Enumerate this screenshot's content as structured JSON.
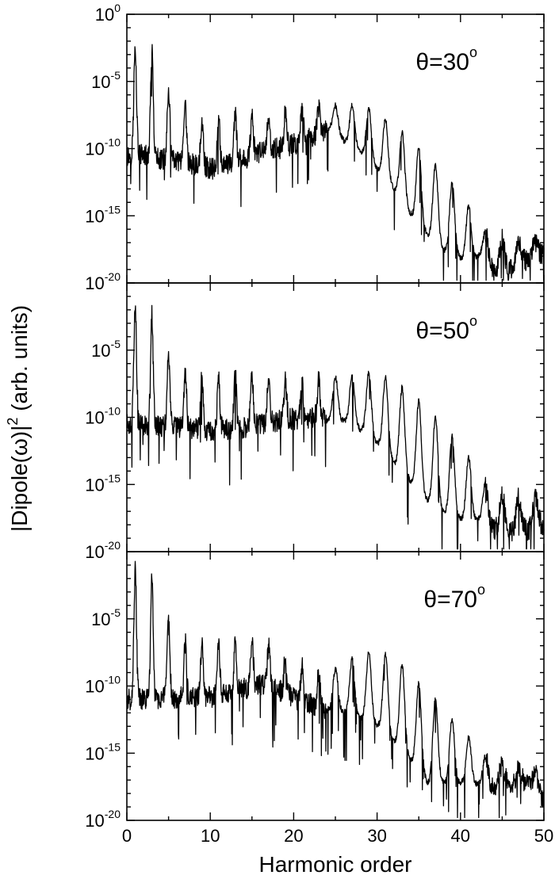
{
  "chart_data": {
    "type": "line",
    "layout": "three stacked panels sharing x-axis",
    "xlabel": "Harmonic order",
    "ylabel": "|Dipole(ω)|² (arb. units)",
    "ylabel_parts": {
      "pre": "|Dipole(ω)|",
      "sup": "2",
      "post": " (arb. units)"
    },
    "xlim": [
      0,
      50
    ],
    "ylim_log10": [
      -20,
      0
    ],
    "yscale": "log",
    "x_ticks": [
      0,
      10,
      20,
      30,
      40,
      50
    ],
    "y_ticks_exponent": [
      0,
      -5,
      -10,
      -15,
      -20
    ],
    "y_tick_base": "10",
    "grid": false,
    "line_color": "#000000",
    "panels": [
      {
        "label": "θ=30°",
        "label_parts": {
          "text": "θ=30",
          "sup": "o"
        },
        "y_tick_exponents_shown": [
          0,
          -5,
          -10,
          -15,
          -20
        ],
        "background_log10": -9.2,
        "noise_amp": 0.9,
        "harmonic_peaks": [
          [
            1,
            -2.2
          ],
          [
            3,
            -2.8
          ],
          [
            5,
            -5.5
          ],
          [
            7,
            -7.0
          ],
          [
            9,
            -8.0
          ],
          [
            11,
            -7.5
          ],
          [
            13,
            -7.5
          ],
          [
            15,
            -7.6
          ],
          [
            17,
            -7.5
          ],
          [
            19,
            -7.4
          ],
          [
            21,
            -7.2
          ],
          [
            23,
            -7.0
          ],
          [
            25,
            -6.8
          ],
          [
            27,
            -6.8
          ],
          [
            29,
            -7.0
          ],
          [
            31,
            -7.8
          ],
          [
            33,
            -8.8
          ],
          [
            35,
            -10.0
          ],
          [
            37,
            -11.2
          ],
          [
            39,
            -12.5
          ],
          [
            41,
            -14.3
          ],
          [
            43,
            -16.2
          ],
          [
            45,
            -16.8
          ],
          [
            47,
            -16.8
          ],
          [
            49,
            -17.0
          ]
        ],
        "minima_log10": [
          [
            1.5,
            -10.5
          ],
          [
            2,
            -10.5
          ],
          [
            10.5,
            -11.5
          ],
          [
            16.5,
            -10.2
          ],
          [
            19.5,
            -9.8
          ],
          [
            24.4,
            -8.5
          ],
          [
            26.2,
            -9.5
          ],
          [
            28.3,
            -10.4
          ],
          [
            30.3,
            -11.7
          ],
          [
            32.3,
            -13.2
          ],
          [
            34.3,
            -15.1
          ],
          [
            36.3,
            -16.6
          ],
          [
            38.3,
            -17.7
          ],
          [
            40.3,
            -18.2
          ],
          [
            42.3,
            -18.0
          ],
          [
            45,
            -19.5
          ],
          [
            47.5,
            -18.4
          ],
          [
            50,
            -17.8
          ]
        ]
      },
      {
        "label": "θ=50°",
        "label_parts": {
          "text": "θ=50",
          "sup": "o"
        },
        "y_tick_exponents_shown": [
          -5,
          -10,
          -15,
          -20
        ],
        "background_log10": -8.4,
        "noise_amp": 0.9,
        "harmonic_peaks": [
          [
            1,
            -1.6
          ],
          [
            3,
            -2.4
          ],
          [
            5,
            -5.3
          ],
          [
            7,
            -6.6
          ],
          [
            9,
            -7.0
          ],
          [
            11,
            -7.0
          ],
          [
            13,
            -6.8
          ],
          [
            15,
            -6.6
          ],
          [
            17,
            -7.0
          ],
          [
            19,
            -7.4
          ],
          [
            21,
            -7.5
          ],
          [
            23,
            -7.3
          ],
          [
            25,
            -7.0
          ],
          [
            27,
            -6.8
          ],
          [
            29,
            -6.7
          ],
          [
            31,
            -7.0
          ],
          [
            33,
            -7.8
          ],
          [
            35,
            -8.8
          ],
          [
            37,
            -10.0
          ],
          [
            39,
            -11.3
          ],
          [
            41,
            -13.0
          ],
          [
            43,
            -14.9
          ],
          [
            45,
            -15.8
          ],
          [
            47,
            -16.0
          ],
          [
            49,
            -16.0
          ]
        ],
        "minima_log10": [
          [
            1.5,
            -10.5
          ],
          [
            10.5,
            -11.0
          ],
          [
            13.5,
            -10.8
          ],
          [
            18.5,
            -10.2
          ],
          [
            22.5,
            -10.0
          ],
          [
            26.1,
            -10.3
          ],
          [
            28.2,
            -11.0
          ],
          [
            30.2,
            -12.0
          ],
          [
            32.2,
            -13.5
          ],
          [
            34.2,
            -14.9
          ],
          [
            36.2,
            -16.3
          ],
          [
            38.2,
            -17.2
          ],
          [
            40.2,
            -17.6
          ],
          [
            42.2,
            -17.6
          ],
          [
            44.5,
            -18.5
          ],
          [
            48,
            -18.4
          ],
          [
            50,
            -18.0
          ]
        ]
      },
      {
        "label": "θ=70°",
        "label_parts": {
          "text": "θ=70",
          "sup": "o"
        },
        "y_tick_exponents_shown": [
          -5,
          -10,
          -15,
          -20
        ],
        "background_log10": -8.4,
        "noise_amp": 0.9,
        "harmonic_peaks": [
          [
            1,
            -1.4
          ],
          [
            3,
            -2.1
          ],
          [
            5,
            -5.3
          ],
          [
            7,
            -6.8
          ],
          [
            9,
            -7.0
          ],
          [
            11,
            -7.1
          ],
          [
            13,
            -6.9
          ],
          [
            15,
            -6.6
          ],
          [
            17,
            -7.1
          ],
          [
            19,
            -7.7
          ],
          [
            21,
            -8.6
          ],
          [
            23,
            -9.0
          ],
          [
            25,
            -8.8
          ],
          [
            27,
            -8.0
          ],
          [
            29,
            -7.5
          ],
          [
            31,
            -7.6
          ],
          [
            33,
            -8.4
          ],
          [
            35,
            -9.8
          ],
          [
            37,
            -11.0
          ],
          [
            39,
            -12.5
          ],
          [
            41,
            -13.8
          ],
          [
            43,
            -15.3
          ],
          [
            45,
            -15.8
          ],
          [
            47,
            -16.0
          ],
          [
            49,
            -16.4
          ]
        ],
        "minima_log10": [
          [
            1.5,
            -11.0
          ],
          [
            10.5,
            -10.8
          ],
          [
            16.5,
            -9.8
          ],
          [
            20.5,
            -11.0
          ],
          [
            24.3,
            -11.8
          ],
          [
            26.2,
            -12.0
          ],
          [
            28.2,
            -12.4
          ],
          [
            30.2,
            -13.0
          ],
          [
            32.2,
            -14.2
          ],
          [
            34.2,
            -15.6
          ],
          [
            36.2,
            -17.3
          ],
          [
            38.2,
            -17.2
          ],
          [
            40.2,
            -17.2
          ],
          [
            42.2,
            -17.3
          ],
          [
            44.5,
            -17.5
          ],
          [
            48,
            -17.2
          ],
          [
            50,
            -18.5
          ]
        ]
      }
    ]
  }
}
